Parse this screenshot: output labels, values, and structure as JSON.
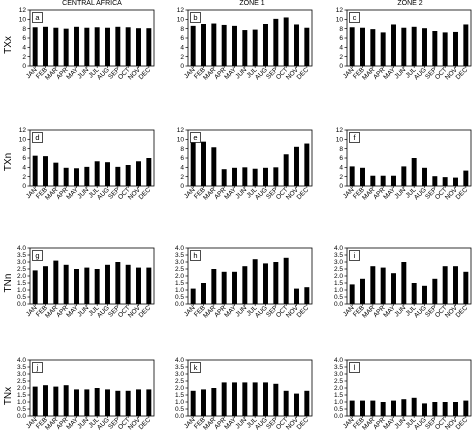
{
  "column_titles": [
    "CENTRAL AFRICA",
    "ZONE 1",
    "ZONE 2"
  ],
  "row_labels": [
    "TXx",
    "TXn",
    "TNn",
    "TNx"
  ],
  "months": [
    "JAN",
    "FEB",
    "MAR",
    "APR",
    "MAY",
    "JUN",
    "JUL",
    "AUG",
    "SEP",
    "OCT",
    "NOV",
    "DEC"
  ],
  "chart_data": [
    {
      "type": "bar",
      "panel": "a",
      "row": 0,
      "col": 0,
      "ylim": [
        0,
        12
      ],
      "yticks": [
        "0",
        "2",
        "4",
        "6",
        "8",
        "10",
        "12"
      ],
      "values": [
        8.3,
        8.4,
        8.2,
        8.0,
        8.4,
        8.2,
        8.3,
        8.2,
        8.4,
        8.3,
        8.1,
        8.1
      ]
    },
    {
      "type": "bar",
      "panel": "b",
      "row": 0,
      "col": 1,
      "ylim": [
        0,
        12
      ],
      "yticks": [
        "0",
        "2",
        "4",
        "6",
        "8",
        "10",
        "12"
      ],
      "values": [
        8.6,
        9.0,
        9.1,
        8.8,
        8.6,
        7.7,
        7.8,
        9.0,
        10.1,
        10.4,
        8.9,
        8.2
      ]
    },
    {
      "type": "bar",
      "panel": "c",
      "row": 0,
      "col": 2,
      "ylim": [
        0,
        12
      ],
      "yticks": [
        "0",
        "2",
        "4",
        "6",
        "8",
        "10",
        "12"
      ],
      "values": [
        8.3,
        8.2,
        7.9,
        7.2,
        8.9,
        8.2,
        8.4,
        8.1,
        7.5,
        7.2,
        7.3,
        8.9
      ]
    },
    {
      "type": "bar",
      "panel": "d",
      "row": 1,
      "col": 0,
      "ylim": [
        0,
        12
      ],
      "yticks": [
        "0",
        "2",
        "4",
        "6",
        "8",
        "10",
        "12"
      ],
      "values": [
        6.5,
        6.4,
        5.0,
        3.9,
        3.8,
        4.1,
        5.3,
        5.1,
        4.1,
        4.5,
        5.3,
        6.0
      ]
    },
    {
      "type": "bar",
      "panel": "e",
      "row": 1,
      "col": 1,
      "ylim": [
        0,
        12
      ],
      "yticks": [
        "0",
        "2",
        "4",
        "6",
        "8",
        "10",
        "12"
      ],
      "values": [
        9.6,
        9.5,
        8.3,
        3.6,
        3.9,
        4.0,
        3.7,
        3.9,
        4.0,
        6.8,
        8.4,
        9.1
      ]
    },
    {
      "type": "bar",
      "panel": "f",
      "row": 1,
      "col": 2,
      "ylim": [
        0,
        12
      ],
      "yticks": [
        "0",
        "2",
        "4",
        "6",
        "8",
        "10",
        "12"
      ],
      "values": [
        4.2,
        3.9,
        2.2,
        2.2,
        2.2,
        4.2,
        6.0,
        3.9,
        2.1,
        1.9,
        1.8,
        3.3
      ]
    },
    {
      "type": "bar",
      "panel": "g",
      "row": 2,
      "col": 0,
      "ylim": [
        0,
        4
      ],
      "yticks": [
        "0.0",
        "0.5",
        "1.0",
        "1.5",
        "2.0",
        "2.5",
        "3.0",
        "3.5",
        "4.0"
      ],
      "values": [
        2.4,
        2.7,
        3.1,
        2.8,
        2.5,
        2.6,
        2.5,
        2.8,
        3.0,
        2.8,
        2.6,
        2.6
      ]
    },
    {
      "type": "bar",
      "panel": "h",
      "row": 2,
      "col": 1,
      "ylim": [
        0,
        4
      ],
      "yticks": [
        "0.0",
        "0.5",
        "1.0",
        "1.5",
        "2.0",
        "2.5",
        "3.0",
        "3.5",
        "4.0"
      ],
      "values": [
        1.1,
        1.5,
        2.5,
        2.3,
        2.3,
        2.7,
        3.2,
        2.9,
        3.0,
        3.3,
        1.1,
        1.2
      ]
    },
    {
      "type": "bar",
      "panel": "i",
      "row": 2,
      "col": 2,
      "ylim": [
        0,
        4
      ],
      "yticks": [
        "0.0",
        "0.5",
        "1.0",
        "1.5",
        "2.0",
        "2.5",
        "3.0",
        "3.5",
        "4.0"
      ],
      "values": [
        1.4,
        1.8,
        2.7,
        2.6,
        2.2,
        3.0,
        1.5,
        1.3,
        1.8,
        2.7,
        2.7,
        2.3
      ]
    },
    {
      "type": "bar",
      "panel": "j",
      "row": 3,
      "col": 0,
      "ylim": [
        0,
        4
      ],
      "yticks": [
        "0.0",
        "0.5",
        "1.0",
        "1.5",
        "2.0",
        "2.5",
        "3.0",
        "3.5",
        "4.0"
      ],
      "values": [
        2.1,
        2.2,
        2.1,
        2.2,
        1.9,
        1.9,
        2.0,
        1.9,
        1.8,
        1.8,
        1.9,
        1.9
      ]
    },
    {
      "type": "bar",
      "panel": "k",
      "row": 3,
      "col": 1,
      "ylim": [
        0,
        4
      ],
      "yticks": [
        "0.0",
        "0.5",
        "1.0",
        "1.5",
        "2.0",
        "2.5",
        "3.0",
        "3.5",
        "4.0"
      ],
      "values": [
        1.8,
        1.9,
        2.0,
        2.4,
        2.4,
        2.4,
        2.4,
        2.4,
        2.3,
        1.8,
        1.6,
        1.8
      ]
    },
    {
      "type": "bar",
      "panel": "l",
      "row": 3,
      "col": 2,
      "ylim": [
        0,
        4
      ],
      "yticks": [
        "0.0",
        "0.5",
        "1.0",
        "1.5",
        "2.0",
        "2.5",
        "3.0",
        "3.5",
        "4.0"
      ],
      "values": [
        1.1,
        1.1,
        1.1,
        1.0,
        1.1,
        1.2,
        1.3,
        0.9,
        1.0,
        1.0,
        1.0,
        1.1
      ]
    }
  ]
}
